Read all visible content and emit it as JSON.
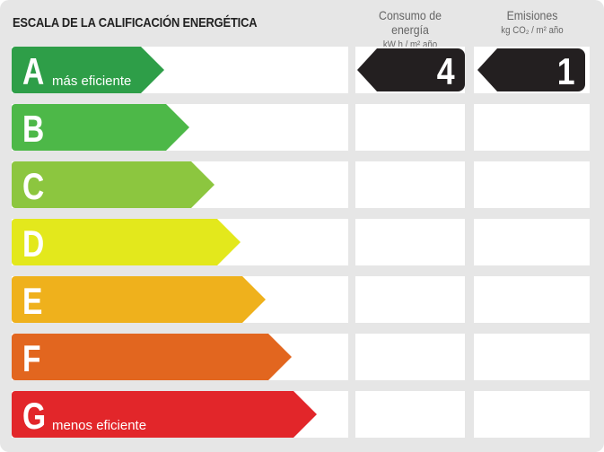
{
  "title": "ESCALA DE LA CALIFICACIÓN ENERGÉTICA",
  "columns": [
    {
      "title": "Consumo de energía",
      "unit": "kW h / m² año"
    },
    {
      "title": "Emisiones",
      "unit": "kg CO₂ / m² año"
    }
  ],
  "ratings": [
    {
      "letter": "A",
      "label": "más eficiente",
      "color": "#2e9e48"
    },
    {
      "letter": "B",
      "label": "",
      "color": "#4db848"
    },
    {
      "letter": "C",
      "label": "",
      "color": "#8cc63f"
    },
    {
      "letter": "D",
      "label": "",
      "color": "#e3e81c"
    },
    {
      "letter": "E",
      "label": "",
      "color": "#efb11c"
    },
    {
      "letter": "F",
      "label": "",
      "color": "#e2661f"
    },
    {
      "letter": "G",
      "label": "menos eficiente",
      "color": "#e2262a"
    }
  ],
  "values": {
    "consumption": "4",
    "emissions": "1",
    "rating": "A"
  }
}
